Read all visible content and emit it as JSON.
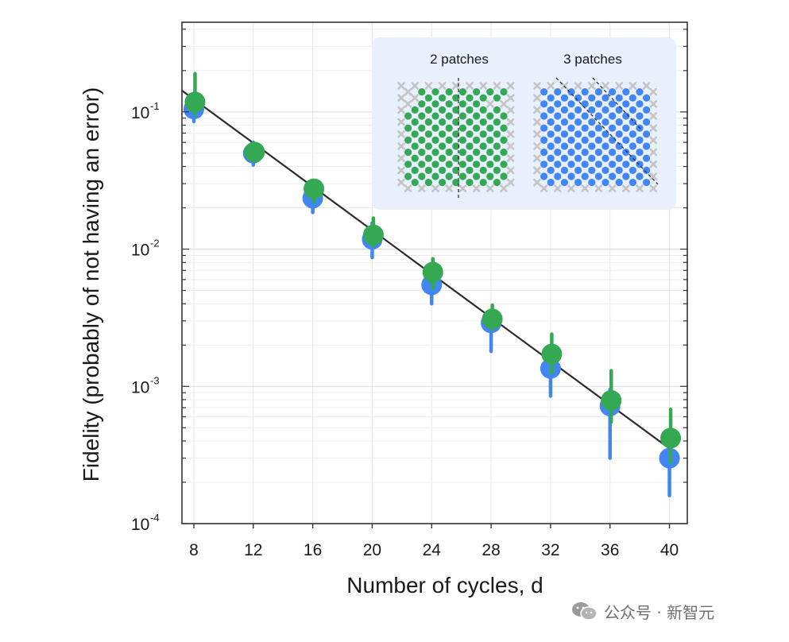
{
  "chart_data": {
    "type": "scatter",
    "xlabel": "Number of cycles, d",
    "ylabel": "Fidelity (probably of not having an error)",
    "x_ticks": [
      8,
      12,
      16,
      20,
      24,
      28,
      32,
      36,
      40
    ],
    "xlim": [
      7.2,
      41.2
    ],
    "y_scale": "log",
    "ylim": [
      0.0001,
      0.45
    ],
    "y_ticks": [
      {
        "value": 0.1,
        "base": "10",
        "exp": "-1"
      },
      {
        "value": 0.01,
        "base": "10",
        "exp": "-2"
      },
      {
        "value": 0.001,
        "base": "10",
        "exp": "-3"
      },
      {
        "value": 0.0001,
        "base": "10",
        "exp": "-4"
      }
    ],
    "grid": true,
    "series": [
      {
        "color": "#4285f4",
        "points": [
          {
            "x": 8,
            "y": 0.105,
            "lo": 0.085,
            "hi": 0.13
          },
          {
            "x": 12,
            "y": 0.05,
            "lo": 0.041,
            "hi": 0.06
          },
          {
            "x": 16,
            "y": 0.0235,
            "lo": 0.0185,
            "hi": 0.029
          },
          {
            "x": 20,
            "y": 0.0118,
            "lo": 0.0087,
            "hi": 0.0155
          },
          {
            "x": 24,
            "y": 0.0055,
            "lo": 0.004,
            "hi": 0.0073
          },
          {
            "x": 28,
            "y": 0.0029,
            "lo": 0.0018,
            "hi": 0.0036
          },
          {
            "x": 32,
            "y": 0.00135,
            "lo": 0.00085,
            "hi": 0.0018
          },
          {
            "x": 36,
            "y": 0.00072,
            "lo": 0.0003,
            "hi": 0.00095
          },
          {
            "x": 40,
            "y": 0.0003,
            "lo": 0.00016,
            "hi": 0.00042
          }
        ]
      },
      {
        "color": "#34a853",
        "points": [
          {
            "x": 8,
            "y": 0.118,
            "lo": 0.095,
            "hi": 0.19
          },
          {
            "x": 12,
            "y": 0.051,
            "lo": 0.044,
            "hi": 0.057
          },
          {
            "x": 16,
            "y": 0.0275,
            "lo": 0.022,
            "hi": 0.031
          },
          {
            "x": 20,
            "y": 0.0127,
            "lo": 0.0105,
            "hi": 0.0168
          },
          {
            "x": 24,
            "y": 0.0068,
            "lo": 0.0052,
            "hi": 0.0085
          },
          {
            "x": 28,
            "y": 0.0031,
            "lo": 0.0026,
            "hi": 0.0039
          },
          {
            "x": 32,
            "y": 0.00172,
            "lo": 0.00125,
            "hi": 0.0024
          },
          {
            "x": 36,
            "y": 0.00079,
            "lo": 0.00055,
            "hi": 0.0013
          },
          {
            "x": 40,
            "y": 0.00042,
            "lo": 0.00028,
            "hi": 0.00068
          }
        ]
      }
    ],
    "fit_line": {
      "color": "#2b2b2b",
      "x": [
        7.2,
        40.2
      ],
      "y": [
        0.143,
        0.00034
      ]
    },
    "inset": {
      "background": "#e8f0fe",
      "panels": [
        {
          "title": "2 patches"
        },
        {
          "title": "3 patches"
        }
      ]
    }
  },
  "watermark": {
    "text": "公众号 · 新智元"
  }
}
